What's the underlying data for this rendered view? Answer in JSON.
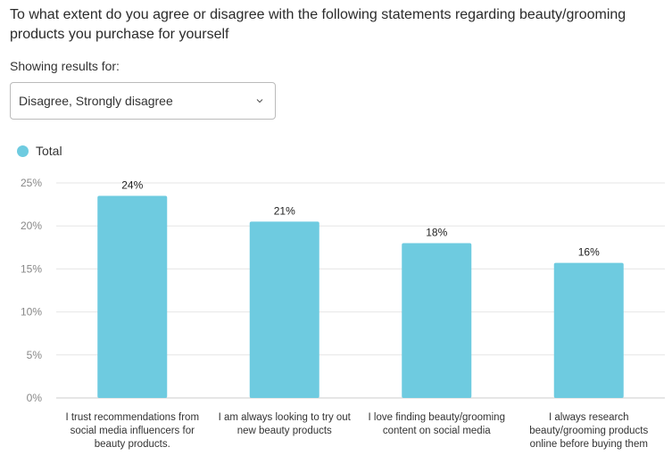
{
  "question": "To what extent do you agree or disagree with the following statements regarding beauty/grooming products you purchase for yourself",
  "filter": {
    "label": "Showing results for:",
    "selected": "Disagree, Strongly disagree"
  },
  "chart_data": {
    "type": "bar",
    "title": "",
    "legend": [
      {
        "name": "Total",
        "color": "#6ecbe0"
      }
    ],
    "legend_position": "top-left",
    "categories": [
      "I trust recommendations from social media influencers for beauty products.",
      "I am always looking to try out new beauty products",
      "I love finding beauty/grooming content on social media",
      "I always research beauty/grooming products online before buying them"
    ],
    "values": [
      23.5,
      20.5,
      18.0,
      15.7
    ],
    "data_labels": [
      "24%",
      "21%",
      "18%",
      "16%"
    ],
    "yticks": [
      "0%",
      "5%",
      "10%",
      "15%",
      "20%",
      "25%"
    ],
    "ylim": [
      0,
      25
    ],
    "grid": true,
    "xlabel": "",
    "ylabel": ""
  }
}
